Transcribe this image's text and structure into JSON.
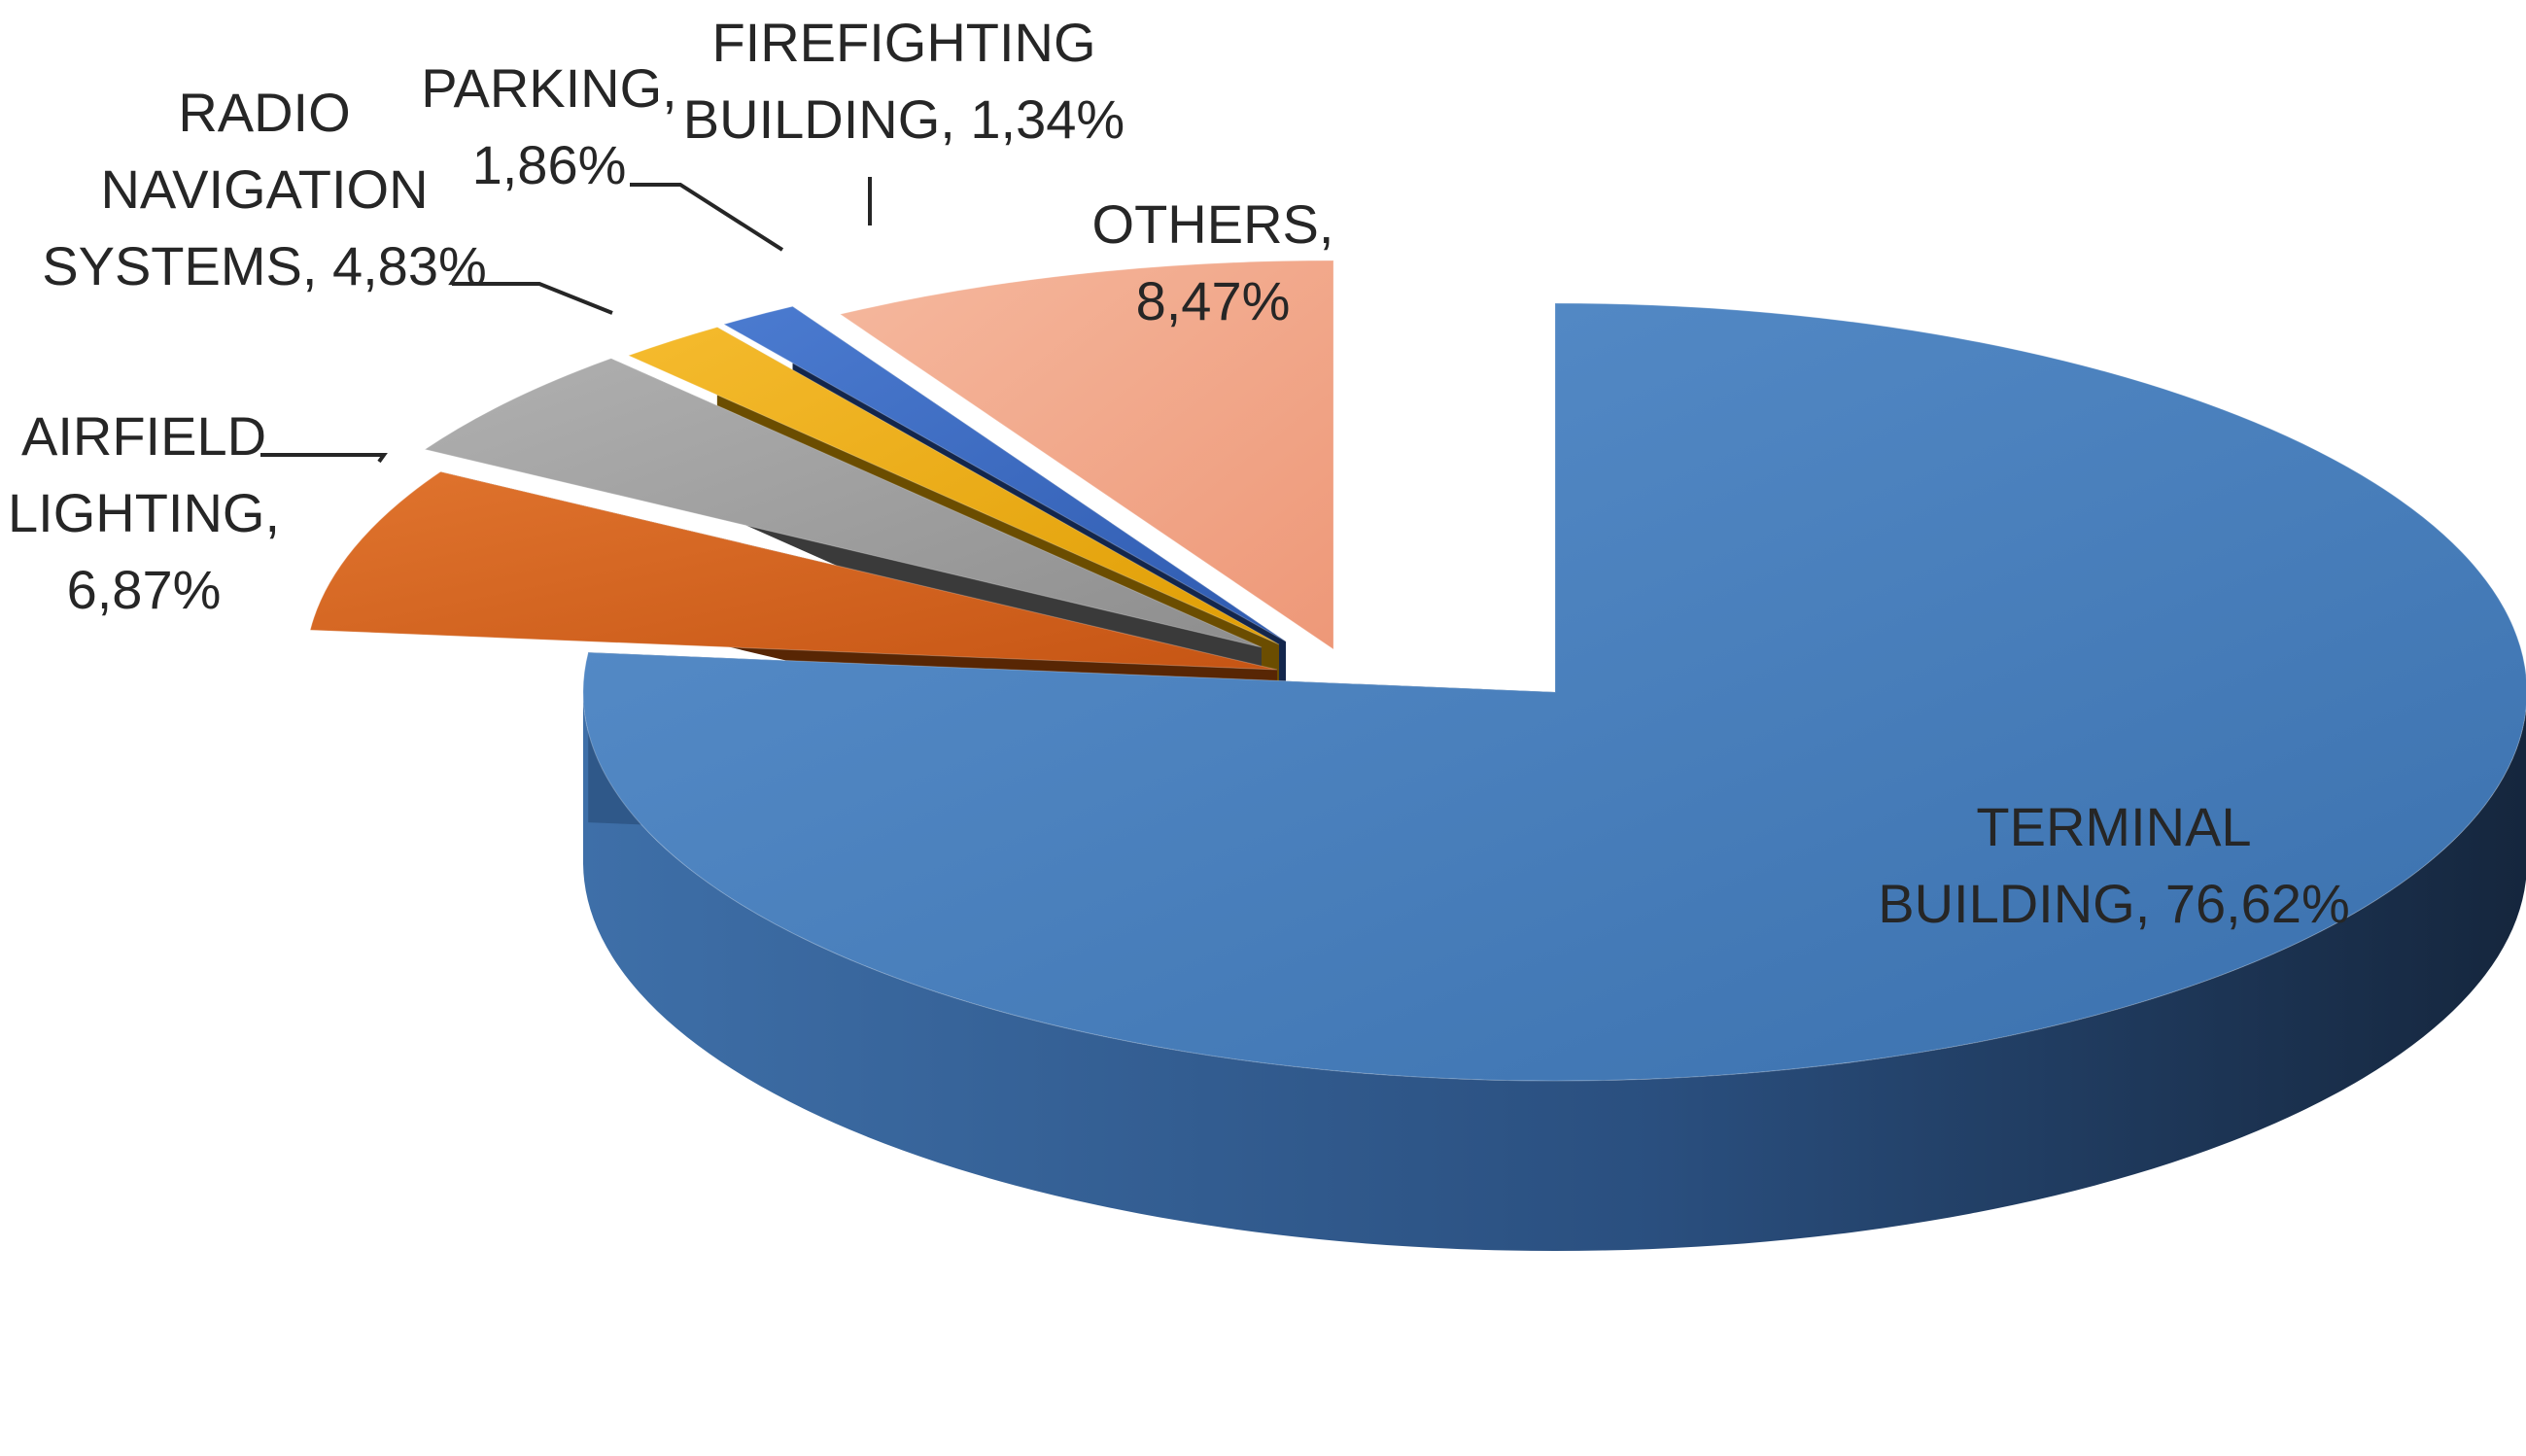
{
  "chart_data": {
    "type": "pie",
    "title": "",
    "style": "3d-exploded",
    "decimal_separator": ",",
    "slices": [
      {
        "key": "terminal",
        "label_lines": [
          "TERMINAL",
          "BUILDING, 76,62%"
        ],
        "value": 76.62,
        "color": "#4a80bd"
      },
      {
        "key": "airfield",
        "label_lines": [
          "AIRFIELD",
          "LIGHTING,",
          "6,87%"
        ],
        "value": 6.87,
        "color": "#d9641f"
      },
      {
        "key": "radio",
        "label_lines": [
          "RADIO",
          "NAVIGATION",
          "SYSTEMS, 4,83%"
        ],
        "value": 4.83,
        "color": "#a3a3a3"
      },
      {
        "key": "parking",
        "label_lines": [
          "PARKING,",
          "1,86%"
        ],
        "value": 1.86,
        "color": "#f0ae18"
      },
      {
        "key": "firefighting",
        "label_lines": [
          "FIREFIGHTING",
          "BUILDING, 1,34%"
        ],
        "value": 1.34,
        "color": "#3d6cc4"
      },
      {
        "key": "others",
        "label_lines": [
          "OTHERS,",
          "8,47%"
        ],
        "value": 8.47,
        "color": "#f2a88a"
      }
    ]
  }
}
